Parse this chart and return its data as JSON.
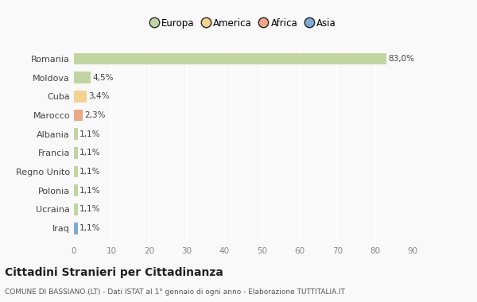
{
  "countries": [
    "Romania",
    "Moldova",
    "Cuba",
    "Marocco",
    "Albania",
    "Francia",
    "Regno Unito",
    "Polonia",
    "Ucraina",
    "Iraq"
  ],
  "values": [
    83.0,
    4.5,
    3.4,
    2.3,
    1.1,
    1.1,
    1.1,
    1.1,
    1.1,
    1.1
  ],
  "labels": [
    "83,0%",
    "4,5%",
    "3,4%",
    "2,3%",
    "1,1%",
    "1,1%",
    "1,1%",
    "1,1%",
    "1,1%",
    "1,1%"
  ],
  "colors": [
    "#b5cc8e",
    "#b5cc8e",
    "#f5c97a",
    "#e8956d",
    "#b5cc8e",
    "#b5cc8e",
    "#b5cc8e",
    "#b5cc8e",
    "#b5cc8e",
    "#6699cc"
  ],
  "legend_labels": [
    "Europa",
    "America",
    "Africa",
    "Asia"
  ],
  "legend_colors": [
    "#b5cc8e",
    "#f5c97a",
    "#e8956d",
    "#6699cc"
  ],
  "title": "Cittadini Stranieri per Cittadinanza",
  "subtitle": "COMUNE DI BASSIANO (LT) - Dati ISTAT al 1° gennaio di ogni anno - Elaborazione TUTTITALIA.IT",
  "xlim": [
    0,
    90
  ],
  "xticks": [
    0,
    10,
    20,
    30,
    40,
    50,
    60,
    70,
    80,
    90
  ],
  "background_color": "#f9f9f9",
  "grid_color": "#ffffff",
  "bar_alpha": 0.82
}
